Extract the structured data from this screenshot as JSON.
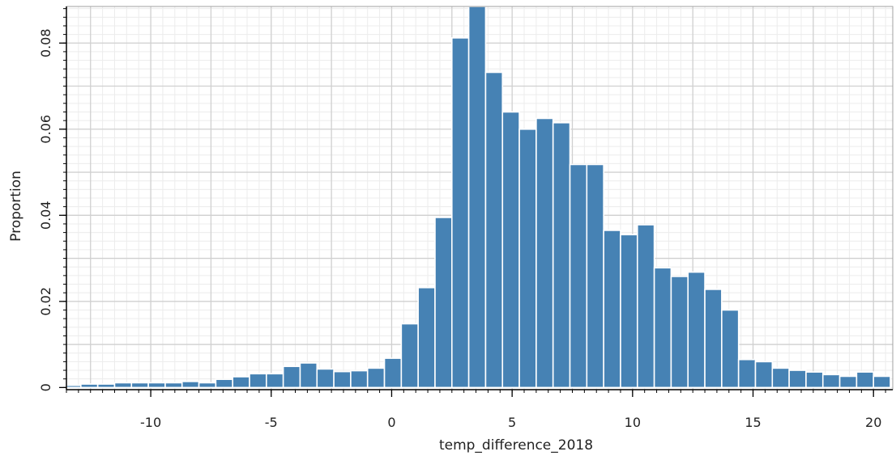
{
  "chart_data": {
    "type": "bar",
    "subtype": "histogram",
    "xlabel": "temp_difference_2018",
    "ylabel": "Proportion",
    "xlim": [
      -13.5,
      20.8
    ],
    "ylim": [
      -0.0005,
      0.0885
    ],
    "grid": true,
    "colors": {
      "bar": "#4682b4",
      "bar_edge": "#ffffff",
      "grid": "#d0d0d0",
      "axis": "#000000"
    },
    "xticks": [
      -10,
      -5,
      0,
      5,
      10,
      15,
      20
    ],
    "xtick_labels": [
      "-10",
      "-5",
      "0",
      "5",
      "10",
      "15",
      "20"
    ],
    "yticks": [
      0,
      0.02,
      0.04,
      0.06,
      0.08
    ],
    "ytick_labels": [
      "0",
      "0.02",
      "0.04",
      "0.06",
      "0.08"
    ],
    "bin_width": 0.7,
    "bins_start": [
      -13.6,
      -12.9,
      -12.2,
      -11.5,
      -10.8,
      -10.1,
      -9.4,
      -8.7,
      -8.0,
      -7.3,
      -6.6,
      -5.9,
      -5.2,
      -4.5,
      -3.8,
      -3.1,
      -2.4,
      -1.7,
      -1.0,
      -0.3,
      0.4,
      1.1,
      1.8,
      2.5,
      3.2,
      3.9,
      4.6,
      5.3,
      6.0,
      6.7,
      7.4,
      8.1,
      8.8,
      9.5,
      10.2,
      10.9,
      11.6,
      12.3,
      13.0,
      13.7,
      14.4,
      15.1,
      15.8,
      16.5,
      17.2,
      17.9,
      18.6,
      19.3,
      20.0
    ],
    "values": [
      0.0005,
      0.0008,
      0.0008,
      0.0011,
      0.0011,
      0.0011,
      0.0011,
      0.0014,
      0.0011,
      0.0019,
      0.0025,
      0.0032,
      0.0032,
      0.0049,
      0.0057,
      0.0043,
      0.0037,
      0.0039,
      0.0045,
      0.0068,
      0.0148,
      0.0232,
      0.0395,
      0.0812,
      0.0885,
      0.0732,
      0.064,
      0.06,
      0.0625,
      0.0615,
      0.0518,
      0.0518,
      0.0365,
      0.0355,
      0.0378,
      0.0278,
      0.0258,
      0.0268,
      0.0228,
      0.018,
      0.0065,
      0.006,
      0.0045,
      0.004,
      0.0036,
      0.003,
      0.0026,
      0.0036,
      0.0026
    ]
  }
}
